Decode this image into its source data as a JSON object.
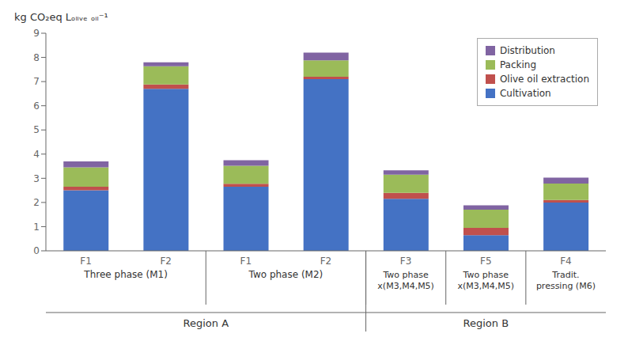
{
  "chart_data": {
    "type": "bar",
    "stacked": true,
    "y_label": "kg CO₂eq Lₒₗᵢᵥₑ ₒᵢₗ⁻¹",
    "categories": [
      "F1",
      "F2",
      "F1",
      "F2",
      "F3",
      "F5",
      "F4"
    ],
    "series": [
      {
        "name": "Cultivation",
        "color": "#4472C4",
        "values": [
          2.5,
          6.7,
          2.65,
          7.1,
          2.15,
          0.65,
          2.0
        ]
      },
      {
        "name": "Olive oil extraction",
        "color": "#C0504D",
        "values": [
          0.15,
          0.18,
          0.12,
          0.1,
          0.25,
          0.3,
          0.1
        ]
      },
      {
        "name": "Packing",
        "color": "#9BBB59",
        "values": [
          0.8,
          0.75,
          0.75,
          0.68,
          0.75,
          0.75,
          0.68
        ]
      },
      {
        "name": "Distribution",
        "color": "#8064A2",
        "values": [
          0.25,
          0.17,
          0.23,
          0.32,
          0.18,
          0.18,
          0.25
        ]
      }
    ],
    "ylim": [
      0,
      9
    ],
    "yticks": [
      0,
      1,
      2,
      3,
      4,
      5,
      6,
      7,
      8,
      9
    ],
    "grid": false,
    "legend": "upper right",
    "category_groups": [
      {
        "label": "Three phase (M1)",
        "count": 2
      },
      {
        "label": "Two phase (M2)",
        "count": 2
      },
      {
        "label": "Two phase\nx(M3,M4,M5)",
        "count": 1
      },
      {
        "label": "Two phase\nx(M3,M4,M5)",
        "count": 1
      },
      {
        "label": "Tradit.\npressing (M6)",
        "count": 1
      }
    ],
    "regions": [
      {
        "label": "Region A",
        "count": 4
      },
      {
        "label": "Region B",
        "count": 3
      }
    ]
  }
}
